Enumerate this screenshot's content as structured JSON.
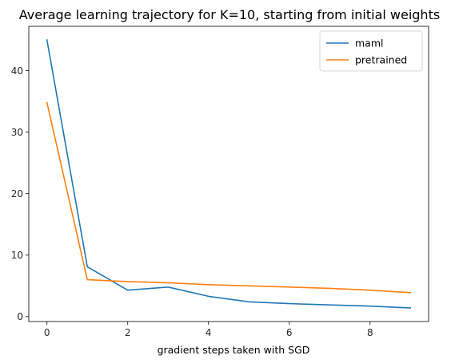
{
  "chart_data": {
    "type": "line",
    "title": "Average learning trajectory for K=10, starting from initial weights",
    "xlabel": "gradient steps taken with SGD",
    "ylabel": "",
    "x": [
      0,
      1,
      2,
      3,
      4,
      5,
      6,
      7,
      8,
      9
    ],
    "xlim": [
      -0.45,
      9.45
    ],
    "ylim": [
      -0.8,
      47.2
    ],
    "xticks": [
      0,
      2,
      4,
      6,
      8
    ],
    "yticks": [
      0,
      10,
      20,
      30,
      40
    ],
    "grid": false,
    "legend_position": "upper-right",
    "series": [
      {
        "name": "maml",
        "color": "#1f77b4",
        "values": [
          45.0,
          8.1,
          4.3,
          4.8,
          3.3,
          2.4,
          2.1,
          1.9,
          1.7,
          1.4
        ]
      },
      {
        "name": "pretrained",
        "color": "#ff7f0e",
        "values": [
          34.8,
          6.0,
          5.7,
          5.5,
          5.2,
          5.0,
          4.8,
          4.6,
          4.3,
          3.9
        ]
      }
    ]
  }
}
